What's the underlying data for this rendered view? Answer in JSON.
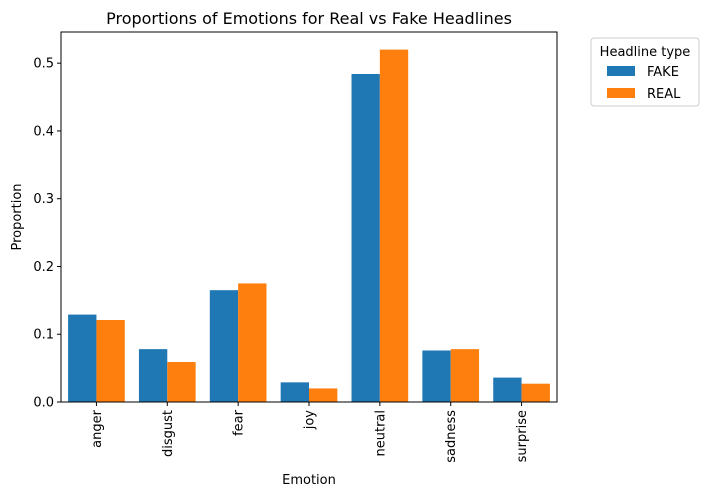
{
  "chart_data": {
    "type": "bar",
    "title": "Proportions of Emotions for Real vs Fake Headlines",
    "xlabel": "Emotion",
    "ylabel": "Proportion",
    "ylim": [
      0,
      0.546
    ],
    "yticks": [
      "0.0",
      "0.1",
      "0.2",
      "0.3",
      "0.4",
      "0.5"
    ],
    "categories": [
      "anger",
      "disgust",
      "fear",
      "joy",
      "neutral",
      "sadness",
      "surprise"
    ],
    "series": [
      {
        "name": "FAKE",
        "color": "#1f77b4",
        "values": [
          0.129,
          0.078,
          0.165,
          0.029,
          0.484,
          0.076,
          0.036
        ]
      },
      {
        "name": "REAL",
        "color": "#ff7f0e",
        "values": [
          0.121,
          0.059,
          0.175,
          0.02,
          0.52,
          0.078,
          0.027
        ]
      }
    ],
    "legend": {
      "title": "Headline type",
      "placement": "outside-right"
    },
    "grid": false
  }
}
